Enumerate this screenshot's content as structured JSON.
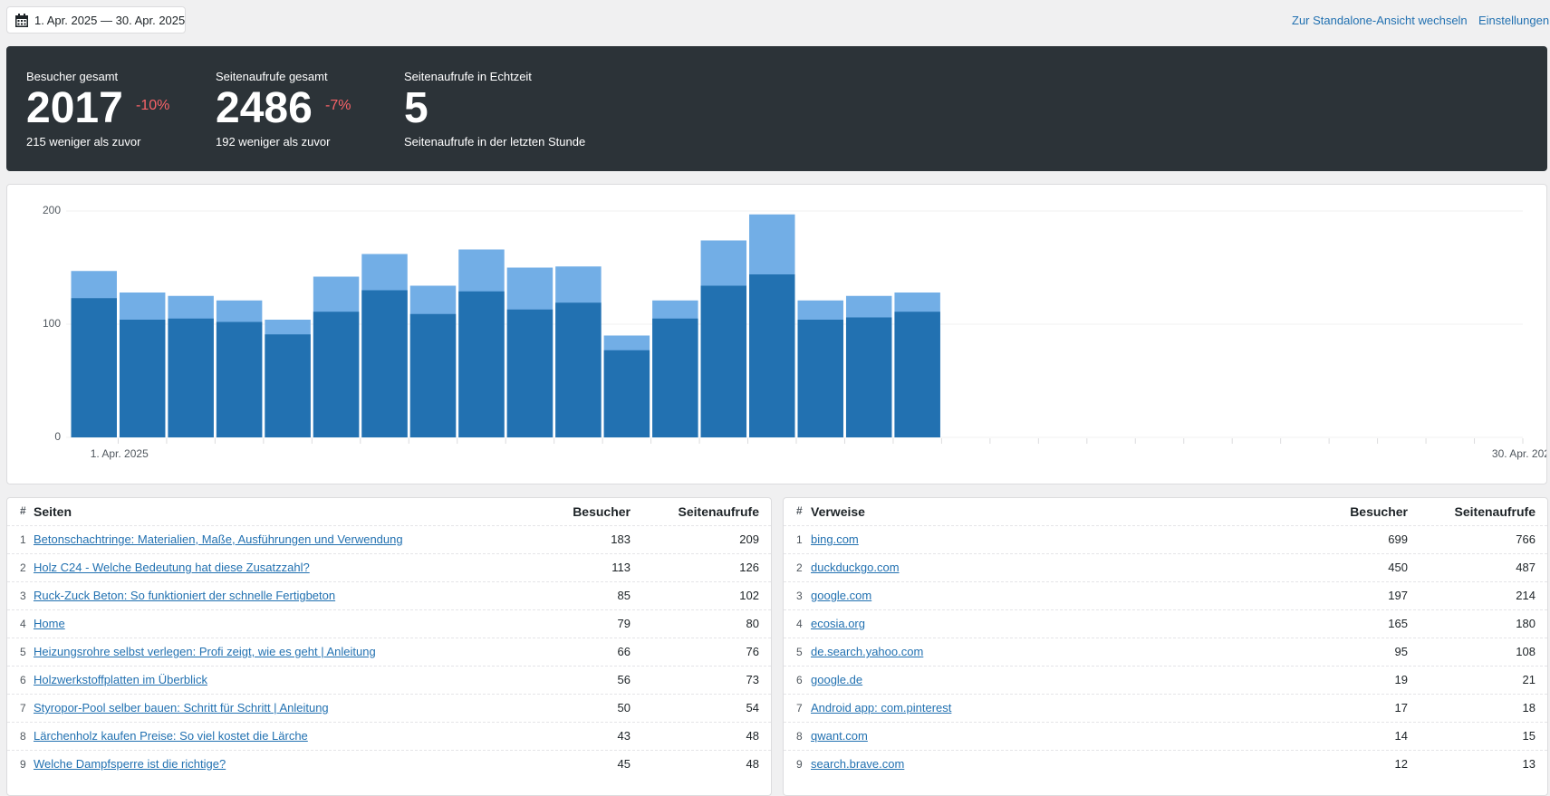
{
  "header": {
    "date_range": "1. Apr. 2025 — 30. Apr. 2025",
    "links": [
      "Zur Standalone-Ansicht wechseln",
      "Einstellungen"
    ]
  },
  "stats": [
    {
      "label": "Besucher gesamt",
      "value": 2017,
      "change": "-10%",
      "note": "215 weniger als zuvor"
    },
    {
      "label": "Seitenaufrufe gesamt",
      "value": 2486,
      "change": "-7%",
      "note": "192 weniger als zuvor"
    },
    {
      "label": "Seitenaufrufe in Echtzeit",
      "value": 5,
      "note": "Seitenaufrufe in der letzten Stunde"
    }
  ],
  "chart_data": {
    "type": "bar",
    "categories": [
      "1. Apr. 2025",
      null,
      null,
      null,
      null,
      null,
      null,
      null,
      null,
      null,
      null,
      null,
      null,
      null,
      null,
      null,
      null,
      null,
      null,
      null,
      null,
      null,
      null,
      null,
      null,
      null,
      null,
      null,
      null,
      "30. Apr. 2025"
    ],
    "series": [
      {
        "color": "#72aee6",
        "values": [
          147,
          128,
          125,
          121,
          104,
          142,
          162,
          134,
          166,
          150,
          151,
          90,
          121,
          174,
          197,
          121,
          125,
          128,
          null,
          null,
          null,
          null,
          null,
          null,
          null,
          null,
          null,
          null,
          null,
          null
        ]
      },
      {
        "color": "#2271b1",
        "values": [
          123,
          104,
          105,
          102,
          91,
          111,
          130,
          109,
          129,
          113,
          119,
          77,
          105,
          134,
          144,
          104,
          106,
          111,
          null,
          null,
          null,
          null,
          null,
          null,
          null,
          null,
          null,
          null,
          null,
          null
        ]
      }
    ],
    "ylim": [
      0,
      200
    ],
    "yticks": [
      0,
      100,
      200
    ],
    "grid": true
  },
  "tables": [
    {
      "columns": [
        "#",
        "Seiten",
        "Besucher",
        "Seitenaufrufe"
      ],
      "rows": [
        [
          1,
          "Betonschachtringe: Materialien, Maße, Ausführungen und Verwendung",
          183,
          209
        ],
        [
          2,
          "Holz C24 - Welche Bedeutung hat diese Zusatzzahl?",
          113,
          126
        ],
        [
          3,
          "Ruck-Zuck Beton: So funktioniert der schnelle Fertigbeton",
          85,
          102
        ],
        [
          4,
          "Home",
          79,
          80
        ],
        [
          5,
          "Heizungsrohre selbst verlegen: Profi zeigt, wie es geht | Anleitung",
          66,
          76
        ],
        [
          6,
          "Holzwerkstoffplatten im Überblick",
          56,
          73
        ],
        [
          7,
          "Styropor-Pool selber bauen: Schritt für Schritt | Anleitung",
          50,
          54
        ],
        [
          8,
          "Lärchenholz kaufen Preise: So viel kostet die Lärche",
          43,
          48
        ],
        [
          9,
          "Welche Dampfsperre ist die richtige?",
          45,
          48
        ]
      ]
    },
    {
      "columns": [
        "#",
        "Verweise",
        "Besucher",
        "Seitenaufrufe"
      ],
      "rows": [
        [
          1,
          "bing.com",
          699,
          766
        ],
        [
          2,
          "duckduckgo.com",
          450,
          487
        ],
        [
          3,
          "google.com",
          197,
          214
        ],
        [
          4,
          "ecosia.org",
          165,
          180
        ],
        [
          5,
          "de.search.yahoo.com",
          95,
          108
        ],
        [
          6,
          "google.de",
          19,
          21
        ],
        [
          7,
          "Android app: com.pinterest",
          17,
          18
        ],
        [
          8,
          "qwant.com",
          14,
          15
        ],
        [
          9,
          "search.brave.com",
          12,
          13
        ]
      ]
    }
  ]
}
